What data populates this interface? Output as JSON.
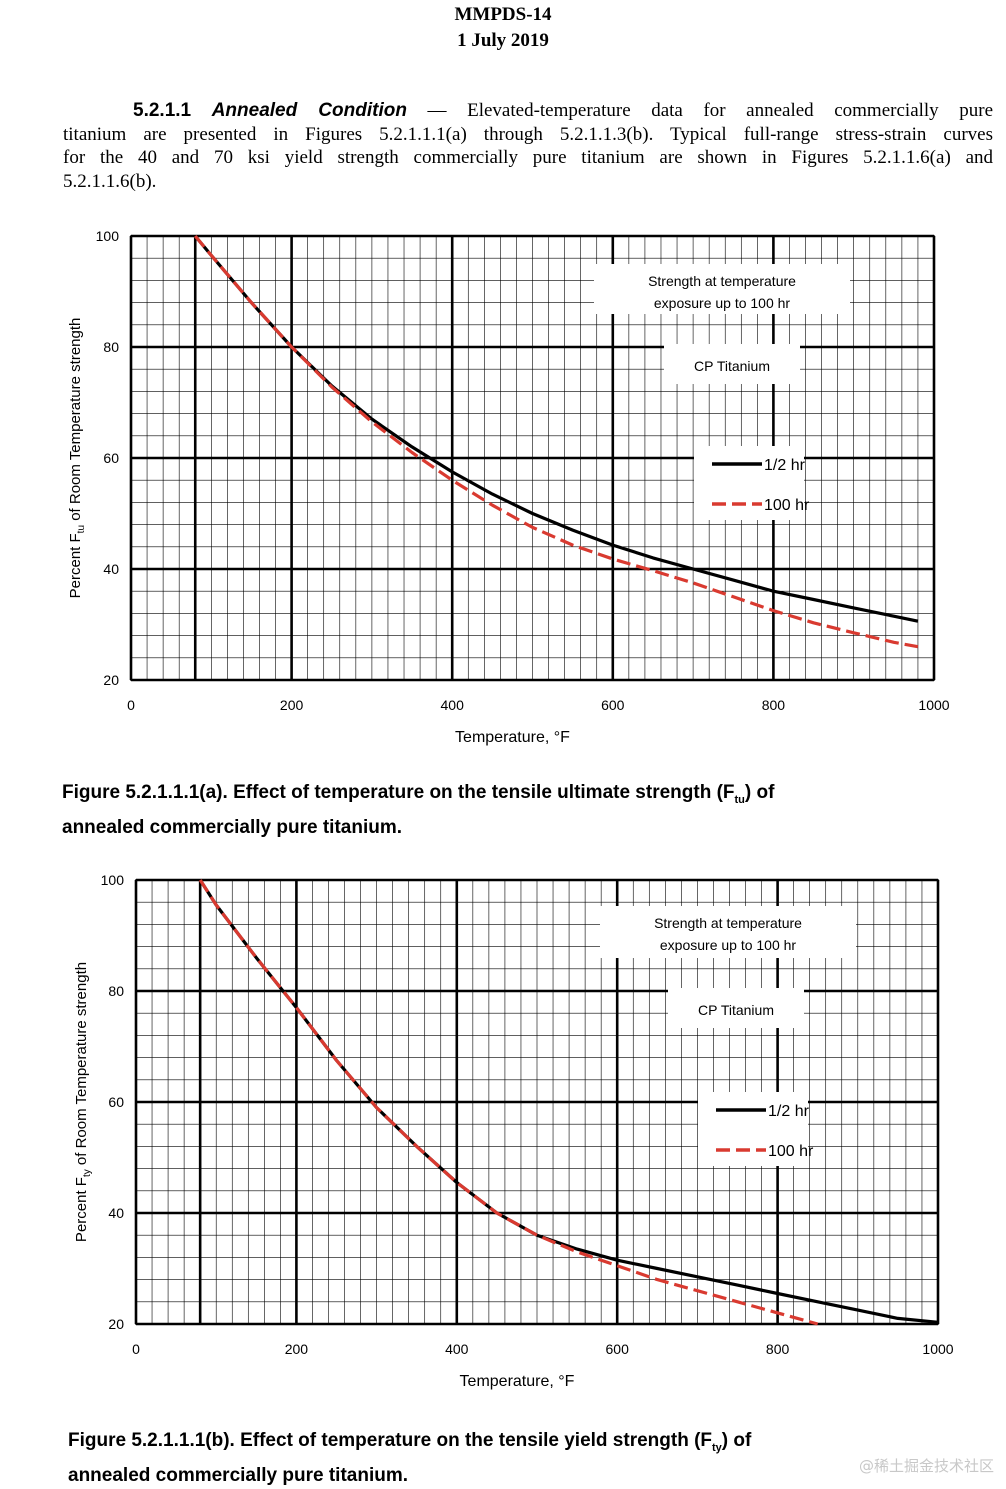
{
  "header": {
    "doc": "MMPDS-14",
    "date": "1 July 2019"
  },
  "paragraph": {
    "section_number": "5.2.1.1",
    "section_title": "Annealed Condition",
    "dash": " — ",
    "lines": [
      "Elevated-temperature data for annealed commercially pure",
      "titanium are presented in Figures 5.2.1.1.1(a) through 5.2.1.1.3(b).  Typical full-range stress-strain curves",
      "for the 40 and 70 ksi yield strength commercially pure titanium are shown in Figures 5.2.1.1.6(a) and",
      "5.2.1.1.6(b)."
    ]
  },
  "chart_data": [
    {
      "type": "line",
      "xlabel": "Temperature, °F",
      "ylabel": {
        "pre": "Percent F",
        "sub": "tu",
        "post": " of Room Temperature strength"
      },
      "xlim": [
        0,
        1000
      ],
      "ylim": [
        20,
        100
      ],
      "xticks": [
        "0",
        "200",
        "400",
        "600",
        "800",
        "1000"
      ],
      "yticks": [
        "20",
        "40",
        "60",
        "80",
        "100"
      ],
      "grid": true,
      "annotations": [
        "Strength at temperature",
        "exposure up to 100 hr",
        "CP Titanium"
      ],
      "legend_position": "right",
      "series": [
        {
          "name": "1/2 hr",
          "color": "#000000",
          "dash": "solid",
          "x": [
            80,
            100,
            150,
            200,
            250,
            300,
            350,
            400,
            450,
            500,
            550,
            600,
            650,
            700,
            750,
            800,
            850,
            900,
            950,
            980
          ],
          "y": [
            100,
            96.5,
            88,
            80,
            73,
            67,
            62,
            57.5,
            53.5,
            50,
            47,
            44.3,
            42,
            40,
            38,
            36,
            34.5,
            33,
            31.5,
            30.6
          ]
        },
        {
          "name": "100 hr",
          "color": "#d93a30",
          "dash": "dashed",
          "x": [
            80,
            100,
            150,
            200,
            250,
            300,
            350,
            400,
            450,
            500,
            550,
            600,
            650,
            700,
            750,
            800,
            850,
            900,
            950,
            980
          ],
          "y": [
            100,
            96.5,
            88,
            80,
            72.8,
            66.5,
            61,
            56,
            51.5,
            47.5,
            44.3,
            41.8,
            39.7,
            37.5,
            35,
            32.5,
            30.3,
            28.5,
            26.8,
            26
          ]
        }
      ]
    },
    {
      "type": "line",
      "xlabel": "Temperature, °F",
      "ylabel": {
        "pre": "Percent F",
        "sub": "ty",
        "post": " of Room Temperature strength"
      },
      "xlim": [
        0,
        1000
      ],
      "ylim": [
        20,
        100
      ],
      "xticks": [
        "0",
        "200",
        "400",
        "600",
        "800",
        "1000"
      ],
      "yticks": [
        "20",
        "40",
        "60",
        "80",
        "100"
      ],
      "grid": true,
      "annotations": [
        "Strength at temperature",
        "exposure up to 100 hr",
        "CP Titanium"
      ],
      "legend_position": "right",
      "series": [
        {
          "name": "1/2 hr",
          "color": "#000000",
          "dash": "solid",
          "x": [
            80,
            100,
            150,
            200,
            250,
            300,
            350,
            400,
            450,
            500,
            550,
            600,
            650,
            700,
            750,
            800,
            850,
            900,
            950,
            1000
          ],
          "y": [
            100,
            95.5,
            86,
            77,
            67.5,
            59,
            52,
            45.5,
            40,
            36,
            33.5,
            31.5,
            30,
            28.5,
            27,
            25.5,
            24,
            22.5,
            21,
            20.3
          ]
        },
        {
          "name": "100 hr",
          "color": "#d93a30",
          "dash": "dashed",
          "x": [
            80,
            100,
            150,
            200,
            250,
            300,
            350,
            400,
            450,
            500,
            550,
            600,
            650,
            700,
            750,
            800,
            850
          ],
          "y": [
            100,
            95.5,
            86,
            77,
            67.5,
            59,
            52,
            45.5,
            40,
            36,
            33,
            30.5,
            28,
            26,
            24,
            22,
            20
          ]
        }
      ]
    }
  ],
  "captions": [
    {
      "line1_pre": "Figure 5.2.1.1.1(a).  Effect of temperature on the tensile ultimate strength (F",
      "sub": "tu",
      "line1_post": ") of",
      "line2": "annealed commercially pure titanium."
    },
    {
      "line1_pre": "Figure 5.2.1.1.1(b).  Effect of temperature on the tensile yield strength (F",
      "sub": "ty",
      "line1_post": ") of",
      "line2": "annealed commercially pure titanium."
    }
  ],
  "watermark": "@稀土掘金技术社区"
}
